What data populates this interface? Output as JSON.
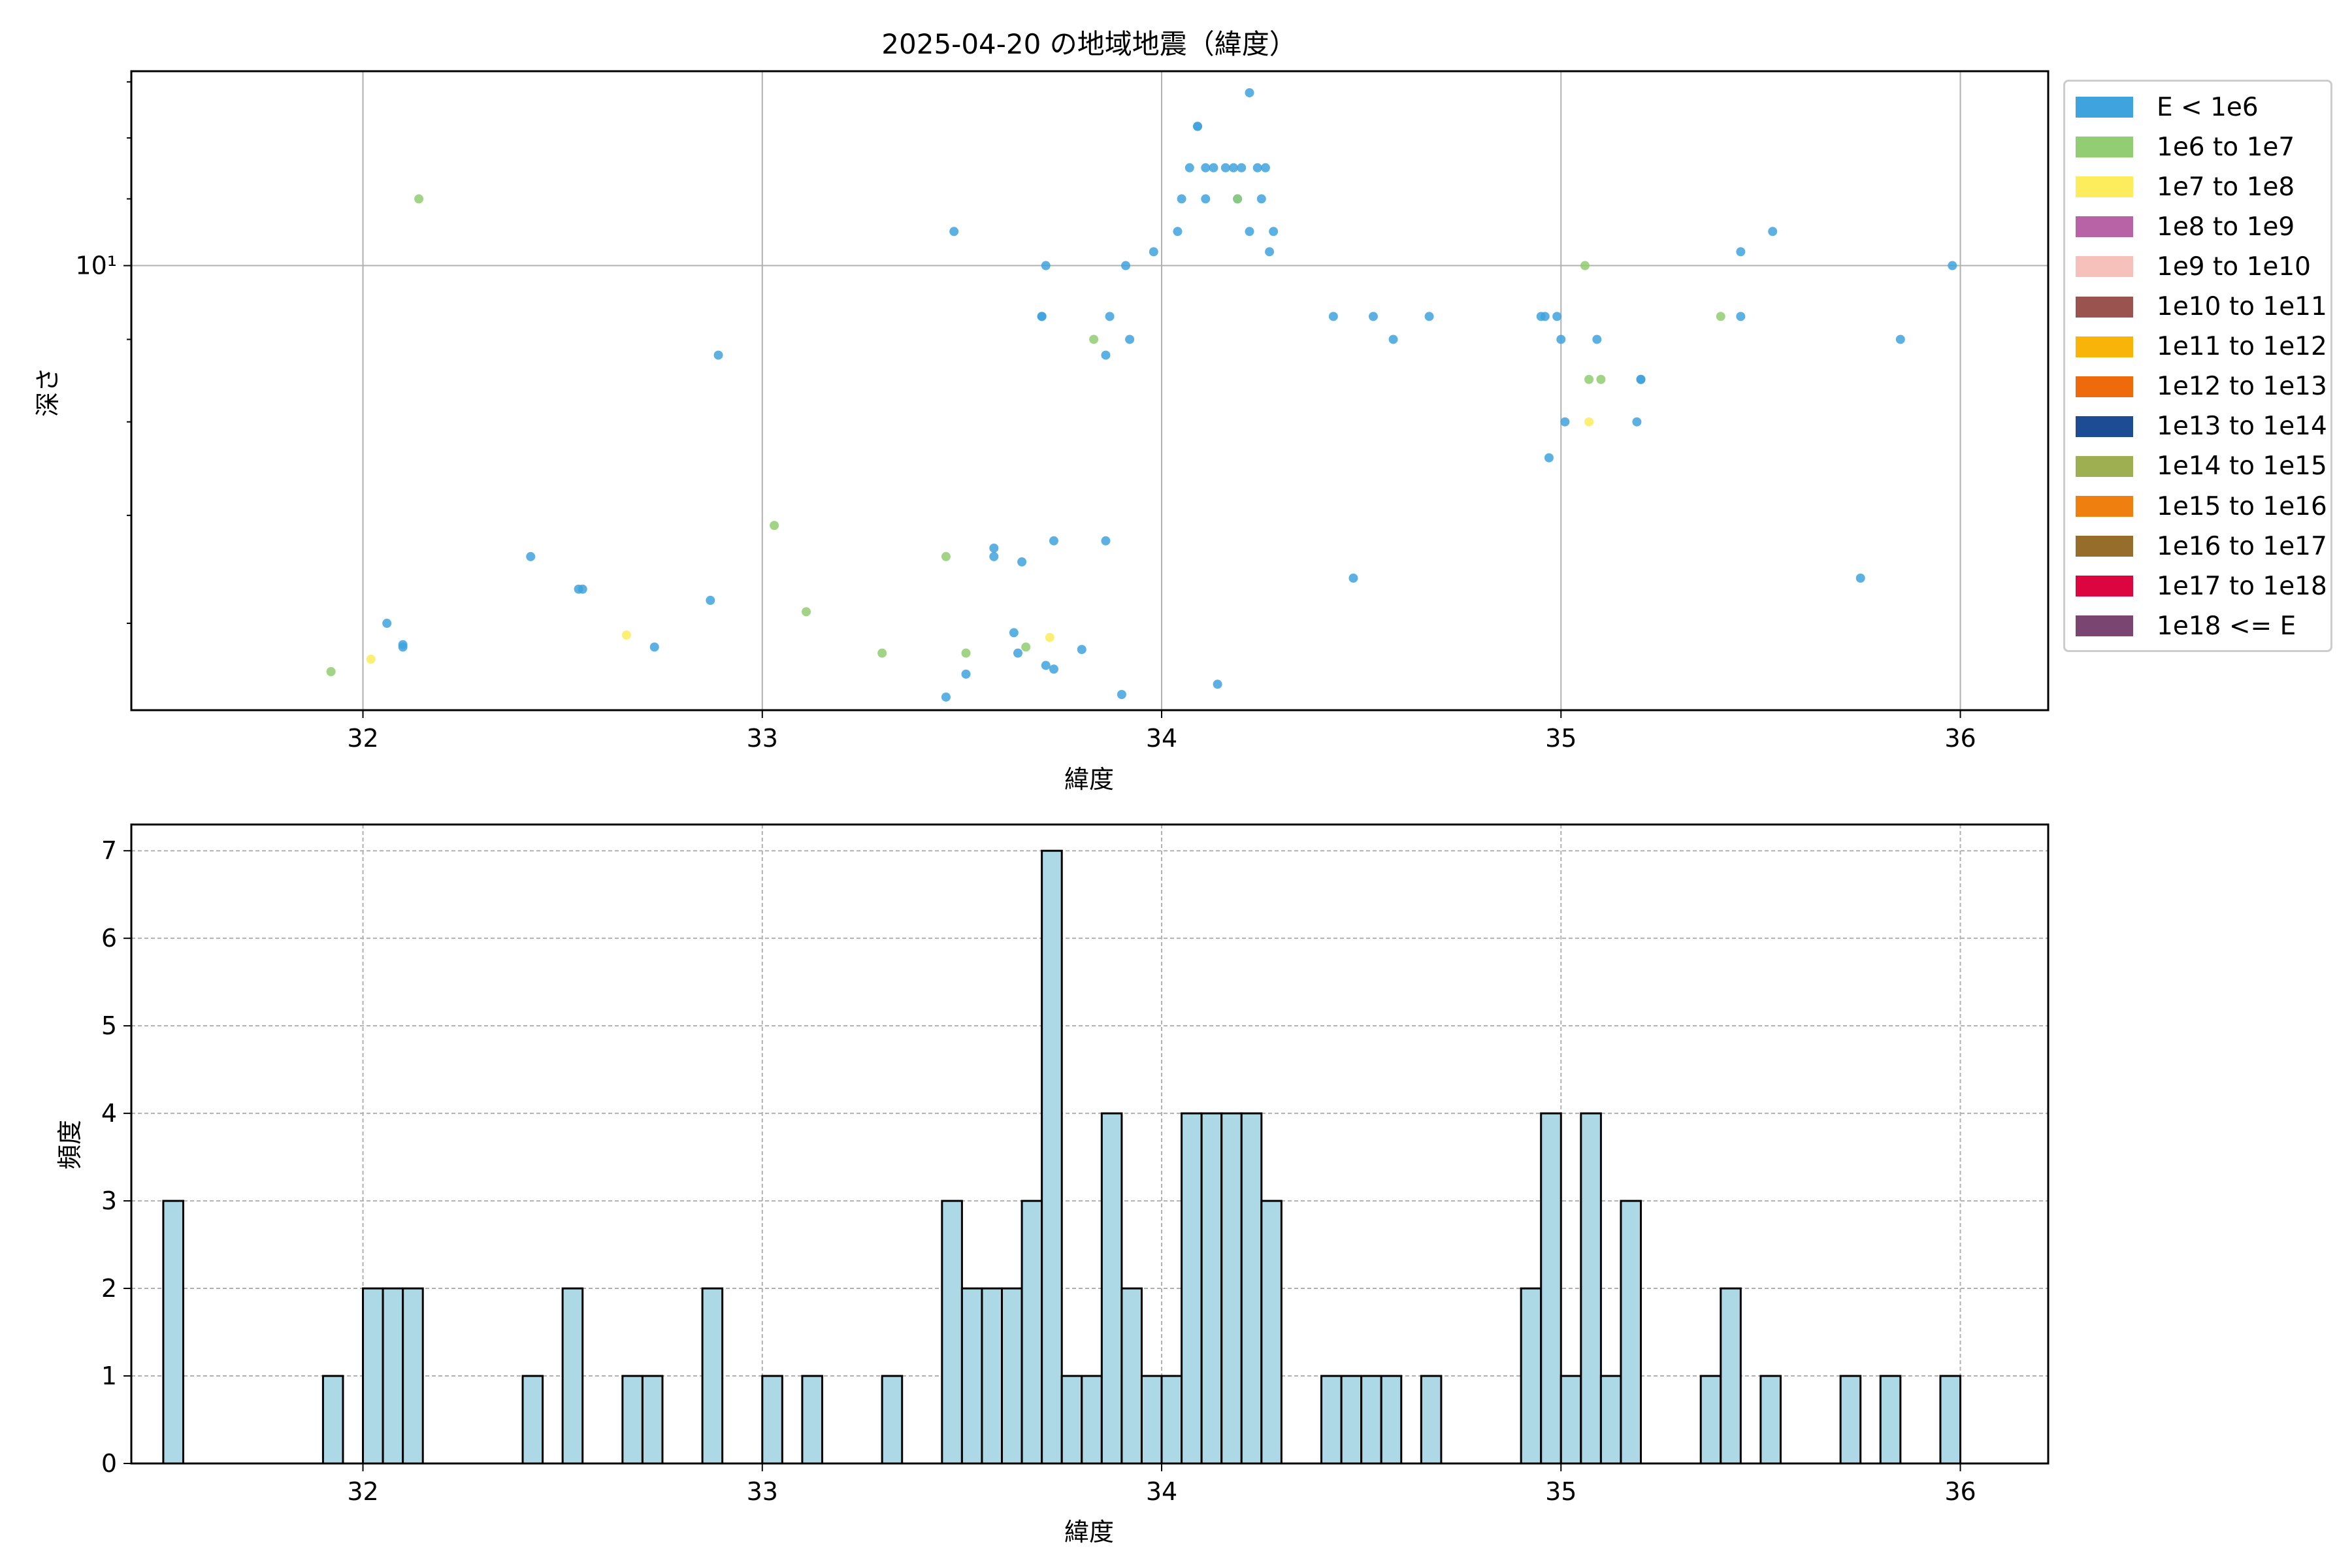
{
  "chart_data": [
    {
      "type": "scatter",
      "title": "2025-04-20 の地域地震（緯度）",
      "xlabel": "緯度",
      "ylabel": "深さ",
      "xlim": [
        31.42,
        36.22
      ],
      "ylim": [
        5.3,
        13.2
      ],
      "yscale": "log",
      "grid": true,
      "x_ticks": [
        "32",
        "33",
        "34",
        "35",
        "36"
      ],
      "y_tick_label": "10¹",
      "legend_position": "outside-right",
      "legend": [
        {
          "label": "E < 1e6",
          "color": "#3fa3dd"
        },
        {
          "label": "1e6 to 1e7",
          "color": "#92cc73"
        },
        {
          "label": "1e7 to 1e8",
          "color": "#fdec5c"
        },
        {
          "label": "1e8 to 1e9",
          "color": "#b863a6"
        },
        {
          "label": "1e9 to 1e10",
          "color": "#f5c1ba"
        },
        {
          "label": "1e10 to 1e11",
          "color": "#9a534e"
        },
        {
          "label": "1e11 to 1e12",
          "color": "#f9b40a"
        },
        {
          "label": "1e12 to 1e13",
          "color": "#ee6a0d"
        },
        {
          "label": "1e13 to 1e14",
          "color": "#1d4c94"
        },
        {
          "label": "1e14 to 1e15",
          "color": "#9daf51"
        },
        {
          "label": "1e15 to 1e16",
          "color": "#ef7f0e"
        },
        {
          "label": "1e16 to 1e17",
          "color": "#966d2a"
        },
        {
          "label": "1e17 to 1e18",
          "color": "#dc0540"
        },
        {
          "label": "1e18 <= E",
          "color": "#7a4570"
        }
      ],
      "points": [
        {
          "x": 31.92,
          "y": 5.6,
          "c": 1
        },
        {
          "x": 32.02,
          "y": 5.7,
          "c": 2
        },
        {
          "x": 32.06,
          "y": 6.0,
          "c": 0
        },
        {
          "x": 32.1,
          "y": 5.8,
          "c": 0
        },
        {
          "x": 32.1,
          "y": 5.82,
          "c": 0
        },
        {
          "x": 32.14,
          "y": 11.0,
          "c": 1
        },
        {
          "x": 32.42,
          "y": 6.6,
          "c": 0
        },
        {
          "x": 32.54,
          "y": 6.3,
          "c": 0
        },
        {
          "x": 32.55,
          "y": 6.3,
          "c": 0
        },
        {
          "x": 32.66,
          "y": 5.9,
          "c": 2
        },
        {
          "x": 32.73,
          "y": 5.8,
          "c": 0
        },
        {
          "x": 32.87,
          "y": 6.2,
          "c": 0
        },
        {
          "x": 32.89,
          "y": 8.8,
          "c": 0
        },
        {
          "x": 33.03,
          "y": 6.9,
          "c": 1
        },
        {
          "x": 33.11,
          "y": 6.1,
          "c": 1
        },
        {
          "x": 33.3,
          "y": 5.75,
          "c": 1
        },
        {
          "x": 33.46,
          "y": 6.6,
          "c": 1
        },
        {
          "x": 33.46,
          "y": 5.4,
          "c": 0
        },
        {
          "x": 33.48,
          "y": 10.5,
          "c": 0
        },
        {
          "x": 33.51,
          "y": 5.58,
          "c": 0
        },
        {
          "x": 33.51,
          "y": 5.75,
          "c": 1
        },
        {
          "x": 33.58,
          "y": 6.6,
          "c": 0
        },
        {
          "x": 33.58,
          "y": 6.68,
          "c": 0
        },
        {
          "x": 33.63,
          "y": 5.92,
          "c": 0
        },
        {
          "x": 33.64,
          "y": 5.75,
          "c": 0
        },
        {
          "x": 33.65,
          "y": 6.55,
          "c": 0
        },
        {
          "x": 33.66,
          "y": 5.8,
          "c": 1
        },
        {
          "x": 33.7,
          "y": 9.3,
          "c": 0
        },
        {
          "x": 33.7,
          "y": 9.3,
          "c": 0
        },
        {
          "x": 33.71,
          "y": 10.0,
          "c": 0
        },
        {
          "x": 33.71,
          "y": 5.65,
          "c": 0
        },
        {
          "x": 33.72,
          "y": 5.88,
          "c": 2
        },
        {
          "x": 33.73,
          "y": 6.75,
          "c": 0
        },
        {
          "x": 33.73,
          "y": 5.62,
          "c": 0
        },
        {
          "x": 33.8,
          "y": 5.78,
          "c": 0
        },
        {
          "x": 33.83,
          "y": 9.0,
          "c": 1
        },
        {
          "x": 33.86,
          "y": 8.8,
          "c": 0
        },
        {
          "x": 33.86,
          "y": 6.75,
          "c": 0
        },
        {
          "x": 33.87,
          "y": 9.3,
          "c": 0
        },
        {
          "x": 33.9,
          "y": 5.42,
          "c": 0
        },
        {
          "x": 33.91,
          "y": 10.0,
          "c": 0
        },
        {
          "x": 33.92,
          "y": 9.0,
          "c": 0
        },
        {
          "x": 33.98,
          "y": 10.2,
          "c": 0
        },
        {
          "x": 34.04,
          "y": 10.5,
          "c": 0
        },
        {
          "x": 34.05,
          "y": 11.0,
          "c": 0
        },
        {
          "x": 34.07,
          "y": 11.5,
          "c": 0
        },
        {
          "x": 34.09,
          "y": 12.2,
          "c": 0
        },
        {
          "x": 34.09,
          "y": 12.2,
          "c": 0
        },
        {
          "x": 34.11,
          "y": 11.5,
          "c": 0
        },
        {
          "x": 34.11,
          "y": 11.0,
          "c": 0
        },
        {
          "x": 34.13,
          "y": 11.5,
          "c": 0
        },
        {
          "x": 34.14,
          "y": 5.5,
          "c": 0
        },
        {
          "x": 34.16,
          "y": 11.5,
          "c": 0
        },
        {
          "x": 34.18,
          "y": 11.5,
          "c": 0
        },
        {
          "x": 34.19,
          "y": 11.0,
          "c": 0
        },
        {
          "x": 34.19,
          "y": 11.0,
          "c": 1
        },
        {
          "x": 34.2,
          "y": 11.5,
          "c": 0
        },
        {
          "x": 34.22,
          "y": 10.5,
          "c": 0
        },
        {
          "x": 34.22,
          "y": 12.8,
          "c": 0
        },
        {
          "x": 34.24,
          "y": 11.5,
          "c": 0
        },
        {
          "x": 34.25,
          "y": 11.0,
          "c": 0
        },
        {
          "x": 34.26,
          "y": 11.5,
          "c": 0
        },
        {
          "x": 34.27,
          "y": 10.2,
          "c": 0
        },
        {
          "x": 34.28,
          "y": 10.5,
          "c": 0
        },
        {
          "x": 34.43,
          "y": 9.3,
          "c": 0
        },
        {
          "x": 34.48,
          "y": 6.4,
          "c": 0
        },
        {
          "x": 34.53,
          "y": 9.3,
          "c": 0
        },
        {
          "x": 34.58,
          "y": 9.0,
          "c": 0
        },
        {
          "x": 34.67,
          "y": 9.3,
          "c": 0
        },
        {
          "x": 34.95,
          "y": 9.3,
          "c": 0
        },
        {
          "x": 34.96,
          "y": 9.3,
          "c": 0
        },
        {
          "x": 34.97,
          "y": 7.6,
          "c": 0
        },
        {
          "x": 34.99,
          "y": 9.3,
          "c": 0
        },
        {
          "x": 35.0,
          "y": 9.0,
          "c": 0
        },
        {
          "x": 35.01,
          "y": 8.0,
          "c": 0
        },
        {
          "x": 35.06,
          "y": 10.0,
          "c": 1
        },
        {
          "x": 35.07,
          "y": 8.5,
          "c": 1
        },
        {
          "x": 35.07,
          "y": 8.0,
          "c": 2
        },
        {
          "x": 35.09,
          "y": 9.0,
          "c": 0
        },
        {
          "x": 35.1,
          "y": 8.5,
          "c": 1
        },
        {
          "x": 35.19,
          "y": 8.0,
          "c": 0
        },
        {
          "x": 35.2,
          "y": 8.5,
          "c": 0
        },
        {
          "x": 35.2,
          "y": 8.5,
          "c": 0
        },
        {
          "x": 35.4,
          "y": 9.3,
          "c": 1
        },
        {
          "x": 35.45,
          "y": 10.2,
          "c": 0
        },
        {
          "x": 35.45,
          "y": 9.3,
          "c": 0
        },
        {
          "x": 35.53,
          "y": 10.5,
          "c": 0
        },
        {
          "x": 35.75,
          "y": 6.4,
          "c": 0
        },
        {
          "x": 35.85,
          "y": 9.0,
          "c": 0
        },
        {
          "x": 35.98,
          "y": 10.0,
          "c": 0
        }
      ]
    },
    {
      "type": "bar",
      "title": "",
      "xlabel": "緯度",
      "ylabel": "頻度",
      "xlim": [
        31.42,
        36.22
      ],
      "ylim": [
        0,
        7.3
      ],
      "grid": true,
      "x_ticks": [
        "32",
        "33",
        "34",
        "35",
        "36"
      ],
      "y_ticks": [
        "0",
        "1",
        "2",
        "3",
        "4",
        "5",
        "6",
        "7"
      ],
      "bar_color": "#add8e6",
      "bin_width": 0.05,
      "bins": [
        {
          "x": 31.5,
          "count": 3
        },
        {
          "x": 31.9,
          "count": 1
        },
        {
          "x": 32.0,
          "count": 2
        },
        {
          "x": 32.05,
          "count": 2
        },
        {
          "x": 32.1,
          "count": 2
        },
        {
          "x": 32.4,
          "count": 1
        },
        {
          "x": 32.5,
          "count": 2
        },
        {
          "x": 32.65,
          "count": 1
        },
        {
          "x": 32.7,
          "count": 1
        },
        {
          "x": 32.85,
          "count": 2
        },
        {
          "x": 33.0,
          "count": 1
        },
        {
          "x": 33.1,
          "count": 1
        },
        {
          "x": 33.3,
          "count": 1
        },
        {
          "x": 33.45,
          "count": 3
        },
        {
          "x": 33.5,
          "count": 2
        },
        {
          "x": 33.55,
          "count": 2
        },
        {
          "x": 33.6,
          "count": 2
        },
        {
          "x": 33.65,
          "count": 3
        },
        {
          "x": 33.7,
          "count": 7
        },
        {
          "x": 33.75,
          "count": 1
        },
        {
          "x": 33.8,
          "count": 1
        },
        {
          "x": 33.85,
          "count": 4
        },
        {
          "x": 33.9,
          "count": 2
        },
        {
          "x": 33.95,
          "count": 1
        },
        {
          "x": 34.0,
          "count": 1
        },
        {
          "x": 34.05,
          "count": 4
        },
        {
          "x": 34.1,
          "count": 4
        },
        {
          "x": 34.15,
          "count": 4
        },
        {
          "x": 34.2,
          "count": 4
        },
        {
          "x": 34.25,
          "count": 3
        },
        {
          "x": 34.4,
          "count": 1
        },
        {
          "x": 34.45,
          "count": 1
        },
        {
          "x": 34.5,
          "count": 1
        },
        {
          "x": 34.55,
          "count": 1
        },
        {
          "x": 34.65,
          "count": 1
        },
        {
          "x": 34.9,
          "count": 2
        },
        {
          "x": 34.95,
          "count": 4
        },
        {
          "x": 35.0,
          "count": 1
        },
        {
          "x": 35.05,
          "count": 4
        },
        {
          "x": 35.1,
          "count": 1
        },
        {
          "x": 35.15,
          "count": 3
        },
        {
          "x": 35.35,
          "count": 1
        },
        {
          "x": 35.4,
          "count": 2
        },
        {
          "x": 35.5,
          "count": 1
        },
        {
          "x": 35.7,
          "count": 1
        },
        {
          "x": 35.8,
          "count": 1
        },
        {
          "x": 35.95,
          "count": 1
        }
      ]
    }
  ]
}
